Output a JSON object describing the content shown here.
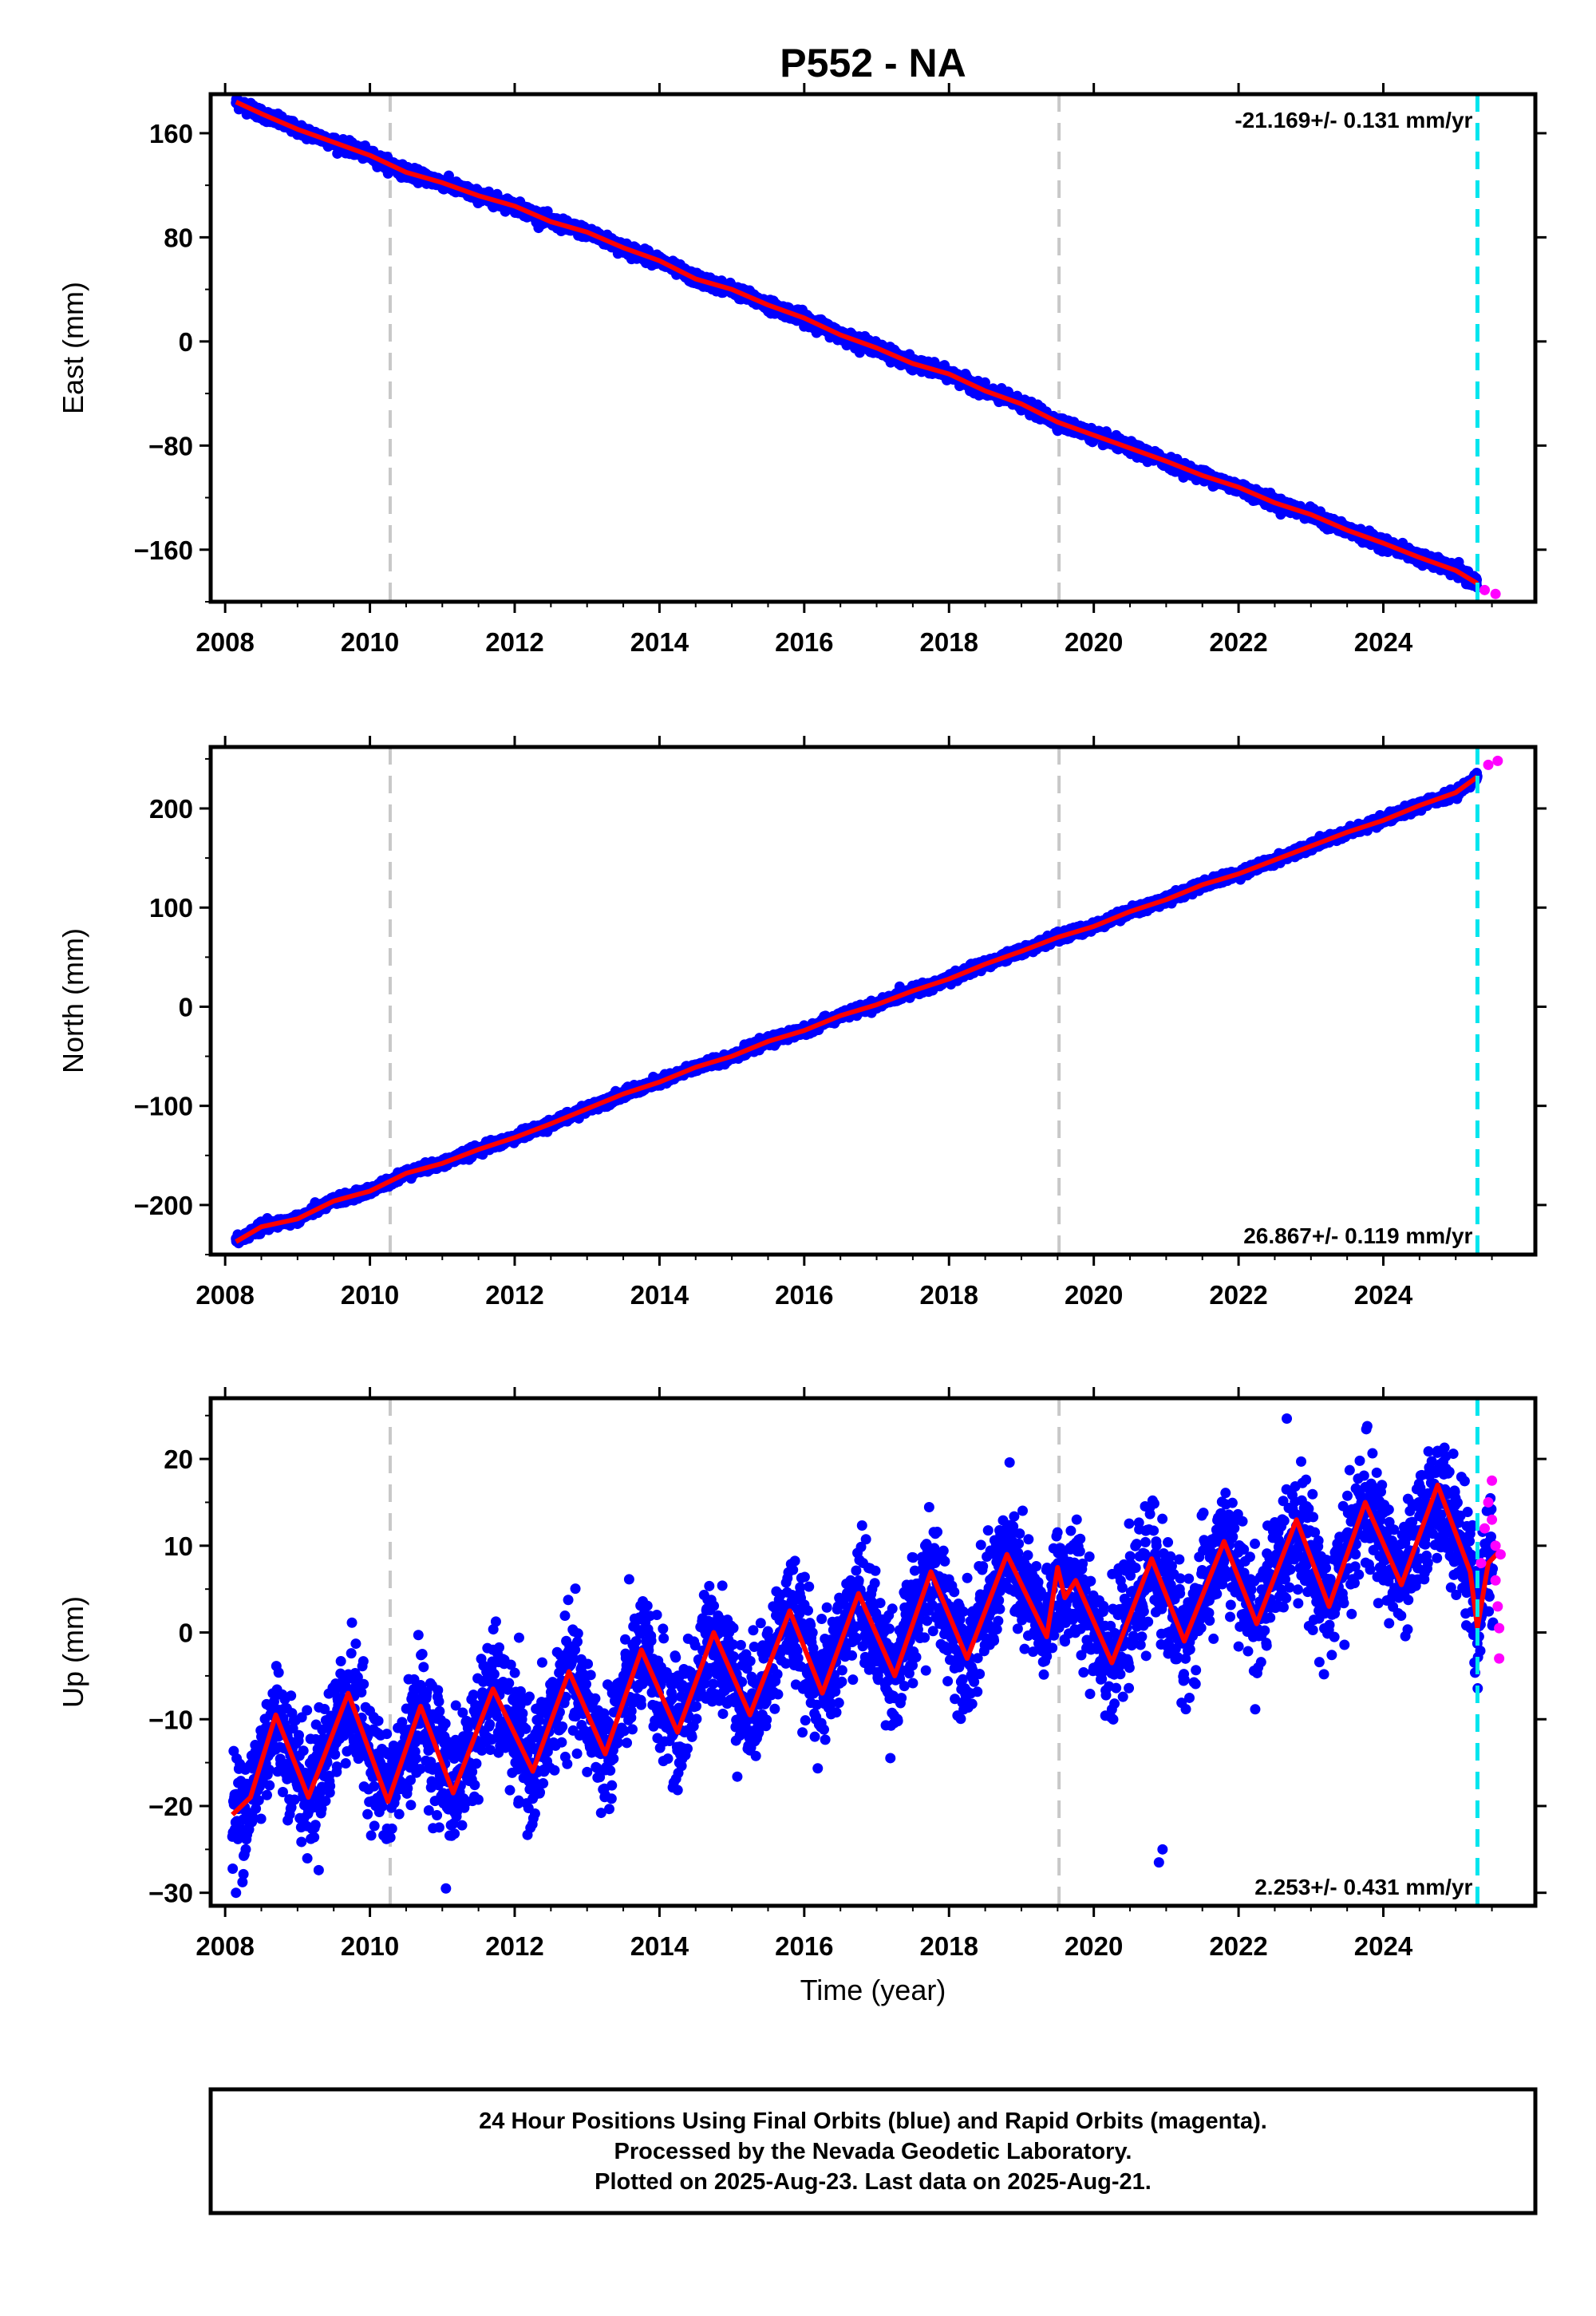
{
  "title": "P552 - NA",
  "colors": {
    "final": "#0000ff",
    "rapid": "#ff00ff",
    "model": "#ff0000",
    "event_line": "#c8c8c8",
    "rapid_line": "#00e5ee"
  },
  "chart_data": [
    {
      "type": "scatter",
      "panel": "east",
      "ylabel": "East (mm)",
      "xlim": [
        2007.8,
        2026.1
      ],
      "ylim": [
        -200,
        190
      ],
      "yticks": [
        -160,
        -80,
        0,
        80,
        160
      ],
      "xticks": [
        2008,
        2010,
        2012,
        2014,
        2016,
        2018,
        2020,
        2022,
        2024
      ],
      "rate_label": "-21.169+/- 0.131 mm/yr",
      "rate_position": "top-right",
      "trend": {
        "t0": 2016.5,
        "v0": 0,
        "rate": -21.169,
        "start": 2008.1,
        "end": 2025.62
      },
      "points_final": [
        [
          2008.15,
          184
        ],
        [
          2008.5,
          175
        ],
        [
          2009.0,
          163
        ],
        [
          2009.5,
          153
        ],
        [
          2010.0,
          143
        ],
        [
          2010.5,
          130
        ],
        [
          2011.0,
          122
        ],
        [
          2011.5,
          112
        ],
        [
          2012.0,
          104
        ],
        [
          2012.5,
          92
        ],
        [
          2013.0,
          84
        ],
        [
          2013.5,
          72
        ],
        [
          2014.0,
          62
        ],
        [
          2014.5,
          48
        ],
        [
          2015.0,
          40
        ],
        [
          2015.5,
          28
        ],
        [
          2016.0,
          18
        ],
        [
          2016.5,
          5
        ],
        [
          2017.0,
          -5
        ],
        [
          2017.5,
          -17
        ],
        [
          2018.0,
          -25
        ],
        [
          2018.5,
          -38
        ],
        [
          2019.0,
          -48
        ],
        [
          2019.5,
          -62
        ],
        [
          2020.0,
          -72
        ],
        [
          2020.5,
          -82
        ],
        [
          2021.0,
          -92
        ],
        [
          2021.5,
          -103
        ],
        [
          2022.0,
          -112
        ],
        [
          2022.5,
          -124
        ],
        [
          2023.0,
          -133
        ],
        [
          2023.5,
          -145
        ],
        [
          2024.0,
          -155
        ],
        [
          2024.5,
          -166
        ],
        [
          2025.0,
          -176
        ],
        [
          2025.3,
          -186
        ]
      ],
      "points_rapid": [
        [
          2025.4,
          -191
        ],
        [
          2025.55,
          -194
        ]
      ]
    },
    {
      "type": "scatter",
      "panel": "north",
      "ylabel": "North (mm)",
      "xlim": [
        2007.8,
        2026.1
      ],
      "ylim": [
        -250,
        262
      ],
      "yticks": [
        -200,
        -100,
        0,
        100,
        200
      ],
      "xticks": [
        2008,
        2010,
        2012,
        2014,
        2016,
        2018,
        2020,
        2022,
        2024
      ],
      "rate_label": "26.867+/- 0.119 mm/yr",
      "rate_position": "bottom-right",
      "trend": {
        "t0": 2016.5,
        "v0": -8,
        "rate": 26.867,
        "start": 2008.1,
        "end": 2025.62
      },
      "points_final": [
        [
          2008.15,
          -237
        ],
        [
          2008.5,
          -222
        ],
        [
          2009.0,
          -214
        ],
        [
          2009.5,
          -196
        ],
        [
          2010.0,
          -186
        ],
        [
          2010.5,
          -168
        ],
        [
          2011.0,
          -158
        ],
        [
          2011.5,
          -144
        ],
        [
          2012.0,
          -132
        ],
        [
          2012.5,
          -118
        ],
        [
          2013.0,
          -103
        ],
        [
          2013.5,
          -88
        ],
        [
          2014.0,
          -76
        ],
        [
          2014.5,
          -61
        ],
        [
          2015.0,
          -50
        ],
        [
          2015.5,
          -35
        ],
        [
          2016.0,
          -24
        ],
        [
          2016.5,
          -9
        ],
        [
          2017.0,
          2
        ],
        [
          2017.5,
          16
        ],
        [
          2018.0,
          28
        ],
        [
          2018.5,
          43
        ],
        [
          2019.0,
          56
        ],
        [
          2019.5,
          70
        ],
        [
          2020.0,
          81
        ],
        [
          2020.5,
          96
        ],
        [
          2021.0,
          108
        ],
        [
          2021.5,
          123
        ],
        [
          2022.0,
          134
        ],
        [
          2022.5,
          148
        ],
        [
          2023.0,
          162
        ],
        [
          2023.5,
          176
        ],
        [
          2024.0,
          188
        ],
        [
          2024.5,
          203
        ],
        [
          2025.0,
          216
        ],
        [
          2025.3,
          232
        ]
      ],
      "points_rapid": [
        [
          2025.45,
          244
        ],
        [
          2025.58,
          248
        ]
      ]
    },
    {
      "type": "scatter",
      "panel": "up",
      "ylabel": "Up (mm)",
      "xlabel": "Time (year)",
      "xlim": [
        2007.8,
        2026.1
      ],
      "ylim": [
        -31.5,
        27
      ],
      "yticks": [
        -30,
        -20,
        -10,
        0,
        10,
        20
      ],
      "xticks": [
        2008,
        2010,
        2012,
        2014,
        2016,
        2018,
        2020,
        2022,
        2024
      ],
      "rate_label": "2.253+/- 0.431 mm/yr",
      "rate_position": "bottom-right",
      "seasonal_model": [
        [
          2008.1,
          -21
        ],
        [
          2008.35,
          -19
        ],
        [
          2008.7,
          -9.5
        ],
        [
          2009.15,
          -19
        ],
        [
          2009.7,
          -7
        ],
        [
          2010.25,
          -19.5
        ],
        [
          2010.7,
          -8.5
        ],
        [
          2011.15,
          -18.5
        ],
        [
          2011.7,
          -6.5
        ],
        [
          2012.25,
          -16
        ],
        [
          2012.75,
          -4.5
        ],
        [
          2013.25,
          -14
        ],
        [
          2013.75,
          -2
        ],
        [
          2014.25,
          -11.5
        ],
        [
          2014.75,
          0
        ],
        [
          2015.25,
          -9.5
        ],
        [
          2015.8,
          2.5
        ],
        [
          2016.25,
          -7
        ],
        [
          2016.75,
          4.5
        ],
        [
          2017.25,
          -5
        ],
        [
          2017.75,
          7
        ],
        [
          2018.25,
          -3
        ],
        [
          2018.8,
          9
        ],
        [
          2019.35,
          -0.5
        ],
        [
          2019.5,
          7.5
        ],
        [
          2019.6,
          4
        ],
        [
          2019.75,
          6
        ],
        [
          2020.25,
          -3.5
        ],
        [
          2020.8,
          8.5
        ],
        [
          2021.25,
          -1
        ],
        [
          2021.8,
          10.5
        ],
        [
          2022.25,
          1
        ],
        [
          2022.8,
          13
        ],
        [
          2023.25,
          3
        ],
        [
          2023.75,
          15
        ],
        [
          2024.25,
          5.5
        ],
        [
          2024.75,
          17
        ],
        [
          2025.2,
          7
        ],
        [
          2025.3,
          0.5
        ],
        [
          2025.45,
          8
        ],
        [
          2025.62,
          9.5
        ]
      ],
      "noise_sd": 3.4,
      "outliers_final": [
        [
          2008.15,
          -30
        ],
        [
          2011.05,
          -29.5
        ],
        [
          2020.95,
          -25
        ],
        [
          2020.9,
          -26.5
        ]
      ],
      "points_rapid": [
        [
          2025.35,
          8
        ],
        [
          2025.4,
          12
        ],
        [
          2025.45,
          15
        ],
        [
          2025.5,
          17.5
        ],
        [
          2025.5,
          13
        ],
        [
          2025.55,
          10
        ],
        [
          2025.55,
          6
        ],
        [
          2025.58,
          3
        ],
        [
          2025.6,
          0.5
        ],
        [
          2025.6,
          -3
        ],
        [
          2025.62,
          9
        ]
      ]
    }
  ],
  "vertical_lines": {
    "gray_dashed": [
      2010.28,
      2019.52
    ],
    "cyan_dashed": [
      2025.3
    ]
  },
  "footer": {
    "line1": "24 Hour Positions Using Final Orbits (blue) and Rapid Orbits (magenta).",
    "line2": "Processed by the Nevada Geodetic Laboratory.",
    "line3": "Plotted on 2025-Aug-23. Last data on 2025-Aug-21."
  }
}
